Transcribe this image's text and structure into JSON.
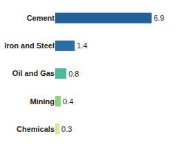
{
  "chart_data": {
    "type": "bar",
    "orientation": "horizontal",
    "categories": [
      "Cement",
      "Iron and Steel",
      "Oil and Gas",
      "Mining",
      "Chemicals"
    ],
    "values": [
      6.9,
      1.4,
      0.8,
      0.4,
      0.3
    ],
    "colors": [
      "#22609a",
      "#2c6ea6",
      "#4db89a",
      "#8fd27c",
      "#d6ea8e"
    ],
    "data_labels": true,
    "tick_labels": "y",
    "grid": false
  }
}
